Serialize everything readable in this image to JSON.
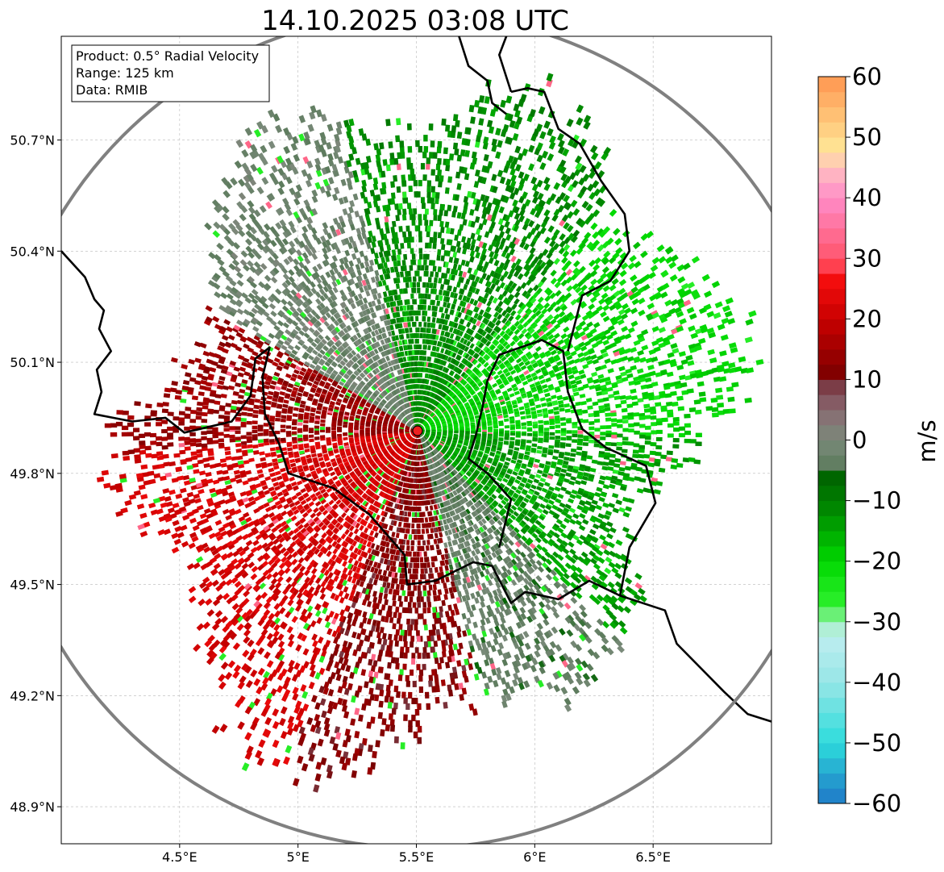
{
  "chart_data": {
    "type": "heatmap",
    "title": "14.10.2025 03:08 UTC",
    "product_text": "Product: 0.5° Radial Velocity",
    "range_text": "Range: 125 km",
    "source_text": "Data: RMIB",
    "x_axis": {
      "range": [
        4.0,
        7.0
      ],
      "ticks": [
        4.5,
        5.0,
        5.5,
        6.0,
        6.5
      ],
      "tick_labels": [
        "4.5°E",
        "5°E",
        "5.5°E",
        "6°E",
        "6.5°E"
      ]
    },
    "y_axis": {
      "range": [
        48.8,
        50.98
      ],
      "ticks": [
        48.9,
        49.2,
        49.5,
        49.8,
        50.1,
        50.4,
        50.7
      ],
      "tick_labels": [
        "48.9°N",
        "49.2°N",
        "49.5°N",
        "49.8°N",
        "50.1°N",
        "50.4°N",
        "50.7°N"
      ]
    },
    "grid": true,
    "radar_site": {
      "lon": 5.505,
      "lat": 49.915
    },
    "range_ring_km": 125,
    "colorbar": {
      "label": "m/s",
      "range": [
        -60,
        60
      ],
      "ticks": [
        60,
        50,
        40,
        30,
        20,
        10,
        0,
        -10,
        -20,
        -30,
        -40,
        -50,
        -60
      ],
      "tick_labels": [
        "60",
        "50",
        "40",
        "30",
        "20",
        "10",
        "0",
        "−10",
        "−20",
        "−30",
        "−40",
        "−50",
        "−60"
      ],
      "stops": [
        {
          "v": -60,
          "c": "#1f78c8"
        },
        {
          "v": -55,
          "c": "#26a6d0"
        },
        {
          "v": -50,
          "c": "#2ddcdc"
        },
        {
          "v": -40,
          "c": "#96e6e6"
        },
        {
          "v": -32,
          "c": "#c0eef0"
        },
        {
          "v": -30,
          "c": "#96f0aa"
        },
        {
          "v": -27,
          "c": "#2cf02c"
        },
        {
          "v": -20,
          "c": "#00d800"
        },
        {
          "v": -12,
          "c": "#008c00"
        },
        {
          "v": -6,
          "c": "#006400"
        },
        {
          "v": -5,
          "c": "#5a7a5a"
        },
        {
          "v": 0,
          "c": "#7a8a7a"
        },
        {
          "v": 5,
          "c": "#8a6a72"
        },
        {
          "v": 9,
          "c": "#7a3a44"
        },
        {
          "v": 10,
          "c": "#780000"
        },
        {
          "v": 20,
          "c": "#c80000"
        },
        {
          "v": 28,
          "c": "#ff1010"
        },
        {
          "v": 29,
          "c": "#ff5064"
        },
        {
          "v": 40,
          "c": "#ff8cc8"
        },
        {
          "v": 45,
          "c": "#ffc0c0"
        },
        {
          "v": 48,
          "c": "#ffe696"
        },
        {
          "v": 60,
          "c": "#ff9650"
        }
      ]
    },
    "velocity_field": {
      "description_sectors_deg_from_north": [
        {
          "from": 300,
          "to": 345,
          "value": -2
        },
        {
          "from": 345,
          "to": 40,
          "value": -12
        },
        {
          "from": 40,
          "to": 90,
          "value": -20
        },
        {
          "from": 90,
          "to": 135,
          "value": -14
        },
        {
          "from": 135,
          "to": 165,
          "value": -3
        },
        {
          "from": 165,
          "to": 200,
          "value": 12
        },
        {
          "from": 200,
          "to": 265,
          "value": 22
        },
        {
          "from": 265,
          "to": 300,
          "value": 14
        }
      ]
    },
    "borders": [
      [
        [
          4.0,
          50.4
        ],
        [
          4.1,
          50.33
        ],
        [
          4.14,
          50.27
        ],
        [
          4.18,
          50.24
        ],
        [
          4.16,
          50.19
        ],
        [
          4.21,
          50.13
        ],
        [
          4.15,
          50.08
        ],
        [
          4.17,
          50.02
        ],
        [
          4.14,
          49.96
        ],
        [
          4.3,
          49.94
        ],
        [
          4.44,
          49.95
        ],
        [
          4.52,
          49.91
        ],
        [
          4.72,
          49.94
        ],
        [
          4.8,
          50.01
        ],
        [
          4.82,
          50.11
        ],
        [
          4.88,
          50.14
        ],
        [
          4.85,
          50.06
        ],
        [
          4.86,
          49.96
        ],
        [
          4.92,
          49.88
        ],
        [
          4.96,
          49.8
        ],
        [
          5.15,
          49.76
        ],
        [
          5.3,
          49.69
        ],
        [
          5.45,
          49.58
        ],
        [
          5.46,
          49.5
        ],
        [
          5.58,
          49.51
        ],
        [
          5.74,
          49.56
        ],
        [
          5.82,
          49.55
        ],
        [
          5.9,
          49.45
        ],
        [
          5.96,
          49.48
        ],
        [
          6.1,
          49.46
        ],
        [
          6.23,
          49.51
        ],
        [
          6.36,
          49.47
        ],
        [
          6.55,
          49.43
        ],
        [
          6.6,
          49.34
        ],
        [
          6.8,
          49.21
        ],
        [
          6.9,
          49.15
        ],
        [
          7.0,
          49.13
        ]
      ],
      [
        [
          5.85,
          49.6
        ],
        [
          5.9,
          49.73
        ],
        [
          5.8,
          49.8
        ],
        [
          5.72,
          49.84
        ],
        [
          5.75,
          49.9
        ],
        [
          5.78,
          49.98
        ],
        [
          5.8,
          50.05
        ],
        [
          5.85,
          50.12
        ],
        [
          6.03,
          50.16
        ],
        [
          6.12,
          50.13
        ],
        [
          6.14,
          50.02
        ],
        [
          6.2,
          49.92
        ],
        [
          6.3,
          49.87
        ],
        [
          6.47,
          49.82
        ],
        [
          6.51,
          49.72
        ],
        [
          6.4,
          49.6
        ],
        [
          6.36,
          49.47
        ]
      ],
      [
        [
          6.14,
          50.13
        ],
        [
          6.2,
          50.28
        ],
        [
          6.32,
          50.32
        ],
        [
          6.4,
          50.4
        ],
        [
          6.38,
          50.5
        ],
        [
          6.28,
          50.59
        ],
        [
          6.19,
          50.69
        ],
        [
          6.1,
          50.73
        ],
        [
          6.04,
          50.83
        ],
        [
          5.97,
          50.84
        ],
        [
          5.9,
          50.83
        ]
      ],
      [
        [
          5.9,
          50.83
        ],
        [
          5.85,
          50.93
        ],
        [
          5.88,
          50.98
        ]
      ],
      [
        [
          5.68,
          50.98
        ],
        [
          5.72,
          50.9
        ],
        [
          5.8,
          50.86
        ],
        [
          5.82,
          50.8
        ],
        [
          5.88,
          50.77
        ]
      ]
    ]
  }
}
